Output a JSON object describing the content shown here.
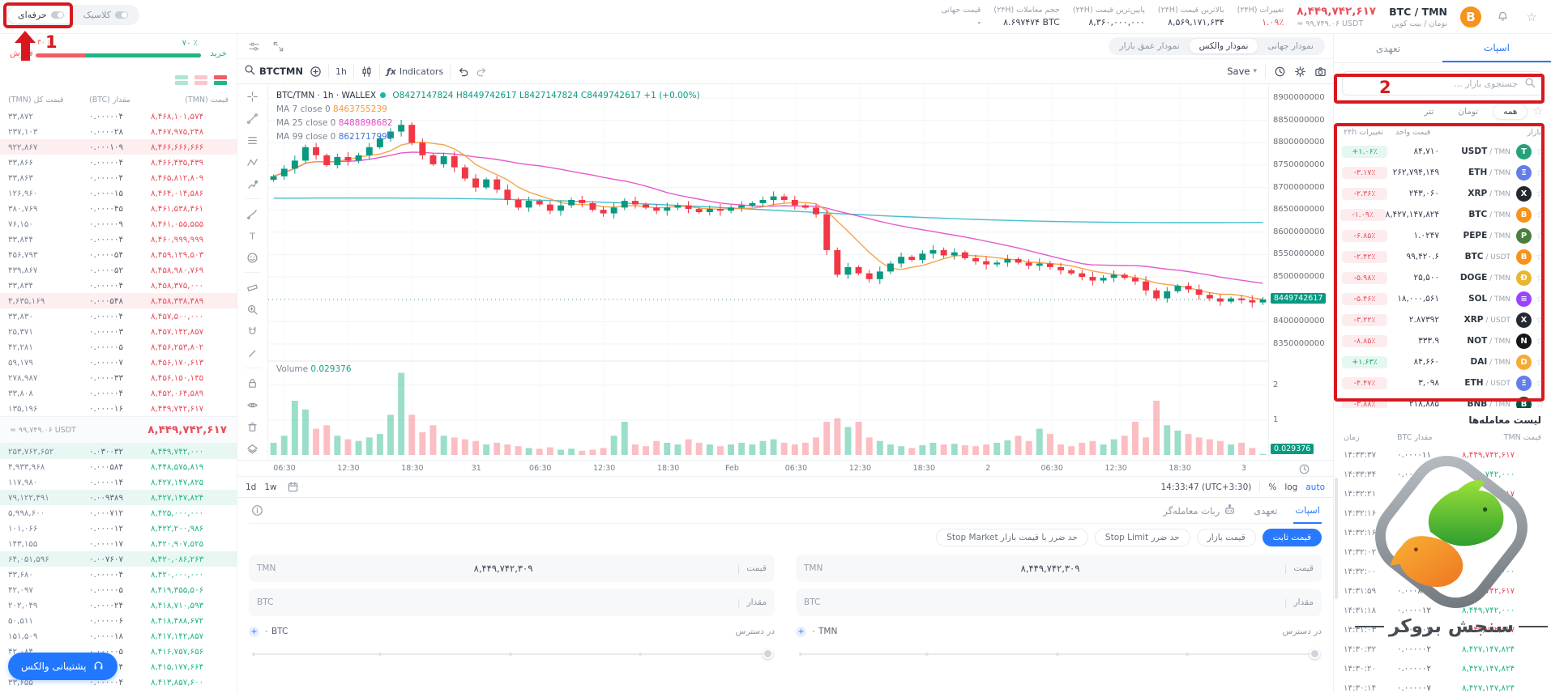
{
  "annotations": {
    "step1": "1",
    "step2": "2"
  },
  "header": {
    "mode_pro": "حرفه‌ای",
    "mode_classic": "کلاسیک",
    "pair": "BTC / TMN",
    "pair_fa": "تومان / بیت کوین",
    "price": "۸,۴۴۹,۷۴۲,۶۱۷",
    "price_approx": "≈ ۹۹,۷۴۹.۰۶ USDT",
    "stats": [
      {
        "label": "تغییرات (۲۴H)",
        "value": "۱.۰۹٪",
        "tone": "down"
      },
      {
        "label": "بالاترین قیمت (۲۴H)",
        "value": "۸,۵۶۹,۱۷۱,۶۳۴",
        "tone": ""
      },
      {
        "label": "پایین‌ترین قیمت (۲۴H)",
        "value": "۸,۳۶۰,۰۰۰,۰۰۰",
        "tone": ""
      },
      {
        "label": "حجم معاملات (۲۴H)",
        "value": "۸.۶۹۷۴۷۴ BTC",
        "tone": ""
      },
      {
        "label": "قیمت جهانی",
        "value": "-",
        "tone": ""
      }
    ]
  },
  "orderbook": {
    "buy_label": "خرید",
    "sell_label": "فروش",
    "buy_pct": "۷۰ ٪",
    "sell_pct": "۳۰ ٪",
    "buy_share": 70,
    "col_price": "قیمت (TMN)",
    "col_amount": "مقدار (BTC)",
    "col_total": "قیمت کل (TMN)",
    "sells": [
      {
        "p": "۸,۴۶۸,۱۰۱,۵۷۴",
        "a": "۰.۰۰۰۰۰۴",
        "t": "۳۳,۸۷۲",
        "hl": false
      },
      {
        "p": "۸,۴۶۷,۹۷۵,۲۴۸",
        "a": "۰.۰۰۰۰۲۸",
        "t": "۲۳۷,۱۰۳",
        "hl": false
      },
      {
        "p": "۸,۴۶۶,۶۶۶,۶۶۶",
        "a": "۰.۰۰۰۱۰۹",
        "t": "۹۲۲,۸۶۷",
        "hl": true
      },
      {
        "p": "۸,۴۶۶,۴۳۵,۴۳۹",
        "a": "۰.۰۰۰۰۰۴",
        "t": "۳۳,۸۶۶",
        "hl": false
      },
      {
        "p": "۸,۴۶۵,۸۱۲,۸۰۹",
        "a": "۰.۰۰۰۰۰۴",
        "t": "۳۳,۸۶۳",
        "hl": false
      },
      {
        "p": "۸,۴۶۴,۰۱۴,۵۸۶",
        "a": "۰.۰۰۰۰۱۵",
        "t": "۱۲۶,۹۶۰",
        "hl": false
      },
      {
        "p": "۸,۴۶۱,۵۳۸,۴۶۱",
        "a": "۰.۰۰۰۰۴۵",
        "t": "۳۸۰,۷۶۹",
        "hl": false
      },
      {
        "p": "۸,۴۶۱,۰۵۵,۵۵۵",
        "a": "۰.۰۰۰۰۰۹",
        "t": "۷۶,۱۵۰",
        "hl": false
      },
      {
        "p": "۸,۴۶۰,۹۹۹,۹۹۹",
        "a": "۰.۰۰۰۰۰۴",
        "t": "۳۳,۸۴۴",
        "hl": false
      },
      {
        "p": "۸,۴۵۹,۱۲۹,۵۰۳",
        "a": "۰.۰۰۰۰۵۴",
        "t": "۴۵۶,۷۹۳",
        "hl": false
      },
      {
        "p": "۸,۴۵۸,۹۸۰,۷۶۹",
        "a": "۰.۰۰۰۰۵۲",
        "t": "۴۳۹,۸۶۷",
        "hl": false
      },
      {
        "p": "۸,۴۵۸,۳۷۵,۰۰۰",
        "a": "۰.۰۰۰۰۰۴",
        "t": "۳۳,۸۳۴",
        "hl": false
      },
      {
        "p": "۸,۴۵۸,۳۳۸,۴۸۹",
        "a": "۰.۰۰۰۵۴۸",
        "t": "۴,۶۳۵,۱۶۹",
        "hl": true
      },
      {
        "p": "۸,۴۵۷,۵۰۰,۰۰۰",
        "a": "۰.۰۰۰۰۰۴",
        "t": "۳۳,۸۳۰",
        "hl": false
      },
      {
        "p": "۸,۴۵۷,۱۴۲,۸۵۷",
        "a": "۰.۰۰۰۰۰۳",
        "t": "۲۵,۳۷۱",
        "hl": false
      },
      {
        "p": "۸,۴۵۶,۲۵۳,۸۰۲",
        "a": "۰.۰۰۰۰۰۵",
        "t": "۴۲,۲۸۱",
        "hl": false
      },
      {
        "p": "۸,۴۵۶,۱۷۰,۶۱۳",
        "a": "۰.۰۰۰۰۰۷",
        "t": "۵۹,۱۷۹",
        "hl": false
      },
      {
        "p": "۸,۴۵۶,۱۵۰,۱۳۵",
        "a": "۰.۰۰۰۰۳۳",
        "t": "۲۷۸,۹۸۷",
        "hl": false
      },
      {
        "p": "۸,۴۵۲,۰۶۴,۵۸۹",
        "a": "۰.۰۰۰۰۰۴",
        "t": "۳۳,۸۰۸",
        "hl": false
      },
      {
        "p": "۸,۴۴۹,۷۴۲,۶۱۷",
        "a": "۰.۰۰۰۰۱۶",
        "t": "۱۳۵,۱۹۶",
        "hl": false
      }
    ],
    "current_price": "۸,۴۴۹,۷۴۲,۶۱۷",
    "current_approx": "≈ ۹۹,۷۴۹.۰۶ USDT",
    "buys": [
      {
        "p": "۸,۴۴۹,۷۴۲,۰۰۰",
        "a": "۰.۰۳۰۰۳۲",
        "t": "۲۵۳,۷۶۲,۶۵۲",
        "hl": true
      },
      {
        "p": "۸,۴۴۸,۵۷۵,۸۱۹",
        "a": "۰.۰۰۰۵۸۴",
        "t": "۴,۹۳۳,۹۶۸",
        "hl": false
      },
      {
        "p": "۸,۴۲۷,۱۴۷,۸۲۵",
        "a": "۰.۰۰۰۰۱۴",
        "t": "۱۱۷,۹۸۰",
        "hl": false
      },
      {
        "p": "۸,۴۲۷,۱۴۷,۸۲۴",
        "a": "۰.۰۰۹۳۸۹",
        "t": "۷۹,۱۲۲,۴۹۱",
        "hl": true
      },
      {
        "p": "۸,۴۲۵,۰۰۰,۰۰۰",
        "a": "۰.۰۰۰۷۱۲",
        "t": "۵,۹۹۸,۶۰۰",
        "hl": false
      },
      {
        "p": "۸,۴۲۲,۲۰۰,۹۸۶",
        "a": "۰.۰۰۰۰۱۲",
        "t": "۱۰۱,۰۶۶",
        "hl": false
      },
      {
        "p": "۸,۴۲۰,۹۰۷,۵۲۵",
        "a": "۰.۰۰۰۰۱۷",
        "t": "۱۴۳,۱۵۵",
        "hl": false
      },
      {
        "p": "۸,۴۲۰,۰۸۶,۲۶۳",
        "a": "۰.۰۰۷۶۰۷",
        "t": "۶۴,۰۵۱,۵۹۶",
        "hl": true
      },
      {
        "p": "۸,۴۲۰,۰۰۰,۰۰۰",
        "a": "۰.۰۰۰۰۰۴",
        "t": "۳۳,۶۸۰",
        "hl": false
      },
      {
        "p": "۸,۴۱۹,۳۵۵,۵۰۶",
        "a": "۰.۰۰۰۰۰۵",
        "t": "۴۲,۰۹۷",
        "hl": false
      },
      {
        "p": "۸,۴۱۸,۷۱۰,۵۹۳",
        "a": "۰.۰۰۰۰۲۴",
        "t": "۲۰۲,۰۴۹",
        "hl": false
      },
      {
        "p": "۸,۴۱۸,۴۸۸,۶۷۲",
        "a": "۰.۰۰۰۰۰۶",
        "t": "۵۰,۵۱۱",
        "hl": false
      },
      {
        "p": "۸,۴۱۷,۱۴۲,۸۵۷",
        "a": "۰.۰۰۰۰۱۸",
        "t": "۱۵۱,۵۰۹",
        "hl": false
      },
      {
        "p": "۸,۴۱۶,۷۵۷,۶۵۶",
        "a": "۰.۰۰۰۰۰۵",
        "t": "۴۲,۰۸۴",
        "hl": false
      },
      {
        "p": "۸,۴۱۵,۱۷۷,۶۶۴",
        "a": "۰.۰۰۰۰۰۴",
        "t": "۳۳,۶۶۴",
        "hl": false
      },
      {
        "p": "۸,۴۱۳,۸۵۷,۶۰۰",
        "a": "۰.۰۰۰۰۰۴",
        "t": "۳۳,۶۵۵",
        "hl": false
      }
    ],
    "support": "پشتیبانی والکس"
  },
  "chart": {
    "tabs": [
      "نمودار جهانی",
      "نمودار والکس",
      "نمودار عمق بازار"
    ],
    "symbol": "BTCTMN",
    "interval": "1h",
    "indicators": "Indicators",
    "save": "Save",
    "legend_title": "BTC/TMN · 1h · WALLEX",
    "legend_o": "O8427147824",
    "legend_h": "H8449742617",
    "legend_l": "L8427147824",
    "legend_c": "C8449742617",
    "legend_chg": "+1 (+0.00%)",
    "ma7_label": "MA 7 close 0",
    "ma7_value": "8463755239",
    "ma25_label": "MA 25 close 0",
    "ma25_value": "8488898682",
    "ma99_label": "MA 99 close 0",
    "ma99_value": "8621717990",
    "volume_label": "Volume",
    "volume_value": "0.029376",
    "price_ticks": [
      {
        "v": 8.9,
        "label": "8900000000"
      },
      {
        "v": 8.85,
        "label": "8850000000"
      },
      {
        "v": 8.8,
        "label": "8800000000"
      },
      {
        "v": 8.75,
        "label": "8750000000"
      },
      {
        "v": 8.7,
        "label": "8700000000"
      },
      {
        "v": 8.65,
        "label": "8650000000"
      },
      {
        "v": 8.6,
        "label": "8600000000"
      },
      {
        "v": 8.55,
        "label": "8550000000"
      },
      {
        "v": 8.5,
        "label": "8500000000"
      },
      {
        "v": 8.4,
        "label": "8400000000"
      },
      {
        "v": 8.35,
        "label": "8350000000"
      }
    ],
    "current": {
      "v": 8.4497,
      "label": "8449742617"
    },
    "vol_ticks": [
      {
        "v": 2,
        "label": "2"
      },
      {
        "v": 1,
        "label": "1"
      }
    ],
    "vol_badge": "0.029376",
    "time_labels": [
      "06:30",
      "12:30",
      "18:30",
      "31",
      "06:30",
      "12:30",
      "18:30",
      "Feb",
      "06:30",
      "12:30",
      "18:30",
      "2",
      "06:30",
      "12:30",
      "18:30",
      "3"
    ],
    "range_1d": "1d",
    "range_1w": "1w",
    "clock": "14:33:47 (UTC+3:30)",
    "percent": "%",
    "log": "log",
    "auto": "auto",
    "closes": [
      8.725,
      8.742,
      8.76,
      8.79,
      8.772,
      8.75,
      8.768,
      8.76,
      8.772,
      8.79,
      8.81,
      8.825,
      8.84,
      8.8,
      8.772,
      8.752,
      8.77,
      8.745,
      8.72,
      8.7,
      8.718,
      8.695,
      8.672,
      8.655,
      8.67,
      8.662,
      8.648,
      8.66,
      8.672,
      8.665,
      8.65,
      8.642,
      8.655,
      8.67,
      8.662,
      8.655,
      8.648,
      8.655,
      8.66,
      8.652,
      8.645,
      8.652,
      8.648,
      8.655,
      8.66,
      8.665,
      8.672,
      8.68,
      8.672,
      8.66,
      8.655,
      8.64,
      8.56,
      8.505,
      8.522,
      8.508,
      8.495,
      8.512,
      8.53,
      8.545,
      8.538,
      8.552,
      8.56,
      8.548,
      8.555,
      8.542,
      8.535,
      8.528,
      8.532,
      8.54,
      8.532,
      8.525,
      8.53,
      8.522,
      8.515,
      8.508,
      8.5,
      8.492,
      8.498,
      8.505,
      8.498,
      8.49,
      8.47,
      8.452,
      8.468,
      8.48,
      8.472,
      8.46,
      8.452,
      8.445,
      8.452,
      8.448,
      8.443,
      8.4497
    ],
    "volumes": [
      0.35,
      0.55,
      1.55,
      1.3,
      0.75,
      0.85,
      0.55,
      0.45,
      0.4,
      0.5,
      0.6,
      1.15,
      2.35,
      1.15,
      0.65,
      0.85,
      0.55,
      0.5,
      0.45,
      0.4,
      0.3,
      0.35,
      0.3,
      0.25,
      0.2,
      0.18,
      0.22,
      0.15,
      0.18,
      0.12,
      0.15,
      0.2,
      0.55,
      0.95,
      0.3,
      0.25,
      0.4,
      0.35,
      0.3,
      0.45,
      0.35,
      0.3,
      0.25,
      0.3,
      0.35,
      0.3,
      0.4,
      0.45,
      0.35,
      0.3,
      0.35,
      0.5,
      0.95,
      1.05,
      0.8,
      0.95,
      0.5,
      0.4,
      0.3,
      0.25,
      0.2,
      0.28,
      0.35,
      0.3,
      0.32,
      0.28,
      0.25,
      0.3,
      0.35,
      0.42,
      0.55,
      0.4,
      0.75,
      0.6,
      0.3,
      0.25,
      0.35,
      0.4,
      0.3,
      0.45,
      0.55,
      0.95,
      0.5,
      1.55,
      0.85,
      0.7,
      0.6,
      0.5,
      0.45,
      0.4,
      0.3,
      0.35,
      0.2,
      0.03
    ]
  },
  "form": {
    "tabs": [
      "اسپات",
      "تعهدی",
      "ربات معامله‌گر"
    ],
    "pills": [
      "قیمت ثابت",
      "قیمت بازار",
      "حد ضرر Stop Limit",
      "حد ضرر با قیمت بازار Stop Market"
    ],
    "price_label": "قیمت",
    "amount_label": "مقدار",
    "available_label": "در دسترس",
    "price_value": "۸,۴۴۹,۷۴۲,۳۰۹",
    "tmn": "TMN",
    "btc": "BTC",
    "buy_available": "۰ TMN",
    "sell_available": "۰ BTC"
  },
  "sidebar": {
    "tab_spot": "اسپات",
    "tab_margin": "تعهدی",
    "search_placeholder": "جستجوی بازار ...",
    "filters": [
      "همه",
      "تومان",
      "تتر"
    ],
    "col_market": "بازار",
    "col_price": "قیمت واحد",
    "col_change": "تغییرات ۲۴h",
    "markets": [
      {
        "base": "USDT",
        "quote": "TMN",
        "sym": "T",
        "color": "#26a17b",
        "price": "۸۴,۷۱۰",
        "change": "+۱.۰۶٪",
        "up": true
      },
      {
        "base": "ETH",
        "quote": "TMN",
        "sym": "Ξ",
        "color": "#627eea",
        "price": "۲۶۲,۷۹۴,۱۴۹",
        "change": "-۳.۱۷٪",
        "up": false
      },
      {
        "base": "XRP",
        "quote": "TMN",
        "sym": "X",
        "color": "#23292f",
        "price": "۲۴۳,۰۶۰",
        "change": "-۲.۳۶٪",
        "up": false
      },
      {
        "base": "BTC",
        "quote": "TMN",
        "sym": "B",
        "color": "#f7931a",
        "price": "۸,۴۲۷,۱۴۷,۸۲۴",
        "change": "-۱.۰۹٪",
        "up": false
      },
      {
        "base": "PEPE",
        "quote": "TMN",
        "sym": "P",
        "color": "#4a7f3c",
        "price": "۱.۰۲۴۷",
        "change": "-۶.۸۵٪",
        "up": false
      },
      {
        "base": "BTC",
        "quote": "USDT",
        "sym": "B",
        "color": "#f7931a",
        "price": "۹۹,۴۲۰.۶",
        "change": "-۲.۴۲٪",
        "up": false
      },
      {
        "base": "DOGE",
        "quote": "TMN",
        "sym": "Ð",
        "color": "#e8b633",
        "price": "۲۵,۵۰۰",
        "change": "-۵.۹۸٪",
        "up": false
      },
      {
        "base": "SOL",
        "quote": "TMN",
        "sym": "≡",
        "color": "#9945ff",
        "price": "۱۸,۰۰۰,۵۶۱",
        "change": "-۵.۴۶٪",
        "up": false
      },
      {
        "base": "XRP",
        "quote": "USDT",
        "sym": "X",
        "color": "#23292f",
        "price": "۲.۸۷۳۹۲",
        "change": "-۳.۲۲٪",
        "up": false
      },
      {
        "base": "NOT",
        "quote": "TMN",
        "sym": "N",
        "color": "#16161a",
        "price": "۳۳۳.۹",
        "change": "-۸.۸۵٪",
        "up": false
      },
      {
        "base": "DAI",
        "quote": "TMN",
        "sym": "D",
        "color": "#f5ac37",
        "price": "۸۴,۶۶۰",
        "change": "+۱.۶۳٪",
        "up": true
      },
      {
        "base": "ETH",
        "quote": "USDT",
        "sym": "Ξ",
        "color": "#627eea",
        "price": "۳,۰۹۸",
        "change": "-۴.۴۷٪",
        "up": false
      },
      {
        "base": "BNB",
        "quote": "TMN",
        "sym": "B",
        "color": "#0b4f43",
        "price": "۲۱۸,۸۸۵",
        "change": "-۳.۸۸٪",
        "up": false
      }
    ],
    "trades_title": "لیست معامله‌ها",
    "t_col_price": "قیمت TMN",
    "t_col_amount": "مقدار BTC",
    "t_col_time": "زمان",
    "trades": [
      {
        "price": "۸,۴۴۹,۷۴۲,۶۱۷",
        "up": false,
        "amount": "۰.۰۰۰۰۱۱",
        "time": "۱۴:۳۳:۳۷"
      },
      {
        "price": "۸,۴۴۹,۷۴۲,۰۰۰",
        "up": true,
        "amount": "۰.۰۰۰۱۶۸",
        "time": "۱۴:۳۳:۳۴"
      },
      {
        "price": "۸,۴۴۹,۷۴۲,۶۱۷",
        "up": false,
        "amount": "۰.۰۰۰۰۰۲",
        "time": "۱۴:۳۲:۲۱"
      },
      {
        "price": "۸,۴۴۹,۷۴۲,۰۰۰",
        "up": true,
        "amount": "۰.۰۰۴۱۴۳",
        "time": "۱۴:۳۲:۱۶"
      },
      {
        "price": "۸,۴۴۹,۷۴۲,۰۰۰",
        "up": true,
        "amount": "۰.۰۰۲۱۲۵",
        "time": "۱۴:۳۲:۱۶"
      },
      {
        "price": "۸,۴۴۹,۷۴۲,۰۰۰",
        "up": true,
        "amount": "۰.۰۰۰۰۰۲",
        "time": "۱۴:۳۲:۰۲"
      },
      {
        "price": "۸,۴۴۹,۷۴۲,۰۰۰",
        "up": true,
        "amount": "۰.۰۰۵۰۱۱",
        "time": "۱۴:۳۲:۰۰"
      },
      {
        "price": "۸,۴۴۹,۷۴۲,۶۱۷",
        "up": false,
        "amount": "۰.۰۰۰۸۹۸",
        "time": "۱۴:۳۱:۵۹"
      },
      {
        "price": "۸,۴۴۹,۷۴۲,۰۰۰",
        "up": true,
        "amount": "۰.۰۰۰۰۱۲",
        "time": "۱۴:۳۱:۱۸"
      },
      {
        "price": "۸,۴۴۹,۷۴۲,۶۱۷",
        "up": false,
        "amount": "۰.۰۰۰۰۰۳",
        "time": "۱۴:۳۱:۰۳"
      },
      {
        "price": "۸,۴۲۷,۱۴۷,۸۲۴",
        "up": true,
        "amount": "۰.۰۰۰۰۰۲",
        "time": "۱۴:۳۰:۳۲"
      },
      {
        "price": "۸,۴۲۷,۱۴۷,۸۲۴",
        "up": true,
        "amount": "۰.۰۰۰۰۰۲",
        "time": "۱۴:۳۰:۲۰"
      },
      {
        "price": "۸,۴۲۷,۱۴۷,۸۲۴",
        "up": true,
        "amount": "۰.۰۰۰۰۰۷",
        "time": "۱۴:۳۰:۱۴"
      }
    ]
  },
  "watermark": {
    "text": "سنجش بروکر"
  }
}
